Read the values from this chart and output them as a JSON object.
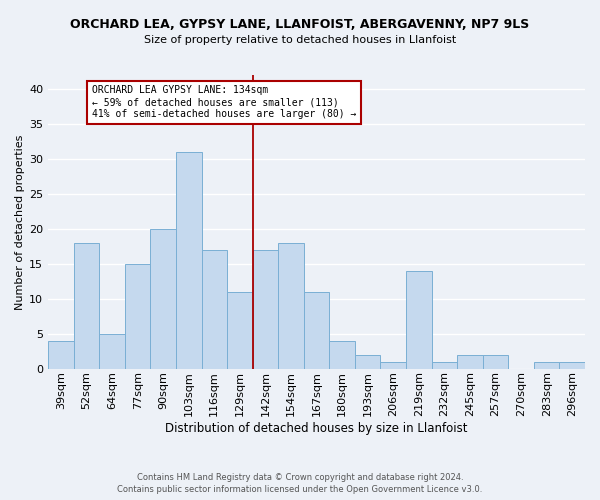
{
  "title": "ORCHARD LEA, GYPSY LANE, LLANFOIST, ABERGAVENNY, NP7 9LS",
  "subtitle": "Size of property relative to detached houses in Llanfoist",
  "xlabel": "Distribution of detached houses by size in Llanfoist",
  "ylabel": "Number of detached properties",
  "bin_labels": [
    "39sqm",
    "52sqm",
    "64sqm",
    "77sqm",
    "90sqm",
    "103sqm",
    "116sqm",
    "129sqm",
    "142sqm",
    "154sqm",
    "167sqm",
    "180sqm",
    "193sqm",
    "206sqm",
    "219sqm",
    "232sqm",
    "245sqm",
    "257sqm",
    "270sqm",
    "283sqm",
    "296sqm"
  ],
  "bar_heights": [
    4,
    18,
    5,
    15,
    20,
    31,
    17,
    11,
    17,
    18,
    11,
    4,
    2,
    1,
    14,
    1,
    2,
    2,
    0,
    1,
    1
  ],
  "bar_color": "#c5d9ee",
  "bar_edge_color": "#7aafd4",
  "vline_x": 7.5,
  "vline_color": "#aa0000",
  "annotation_line1": "ORCHARD LEA GYPSY LANE: 134sqm",
  "annotation_line2": "← 59% of detached houses are smaller (113)",
  "annotation_line3": "41% of semi-detached houses are larger (80) →",
  "ylim": [
    0,
    42
  ],
  "yticks": [
    0,
    5,
    10,
    15,
    20,
    25,
    30,
    35,
    40
  ],
  "footer_line1": "Contains HM Land Registry data © Crown copyright and database right 2024.",
  "footer_line2": "Contains public sector information licensed under the Open Government Licence v3.0.",
  "background_color": "#edf1f7",
  "grid_color": "#ffffff"
}
